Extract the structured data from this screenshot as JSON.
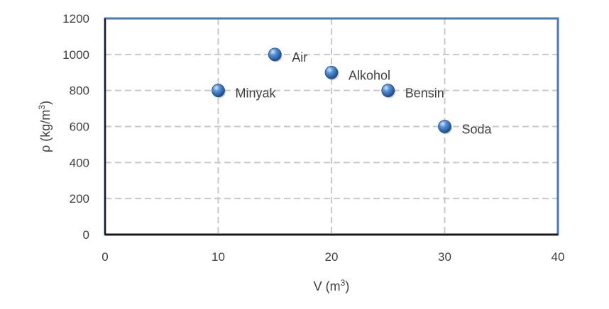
{
  "chart_data": {
    "type": "scatter",
    "title": "",
    "xlabel": "V (m",
    "xlabel_sup": "3",
    "xlabel_suffix": ")",
    "ylabel": "ρ (kg/m",
    "ylabel_sup": "3",
    "ylabel_suffix": ")",
    "xlim": [
      0,
      40
    ],
    "ylim": [
      0,
      1200
    ],
    "xticks": [
      0,
      10,
      20,
      30,
      40
    ],
    "yticks": [
      0,
      200,
      400,
      600,
      800,
      1000,
      1200
    ],
    "grid": true,
    "legend": "none",
    "colors": {
      "point": "#3d7cc9",
      "point_dark": "#1f4f8f",
      "point_light": "#cfe3ff",
      "frame": "#4a7ab5",
      "grid": "#c8c8c8",
      "axis": "#1a1a1a",
      "text": "#404040"
    },
    "points": [
      {
        "label": "Minyak",
        "x": 10,
        "y": 800
      },
      {
        "label": "Air",
        "x": 15,
        "y": 1000
      },
      {
        "label": "Alkohol",
        "x": 20,
        "y": 900
      },
      {
        "label": "Bensin",
        "x": 25,
        "y": 800
      },
      {
        "label": "Soda",
        "x": 30,
        "y": 600
      }
    ]
  }
}
